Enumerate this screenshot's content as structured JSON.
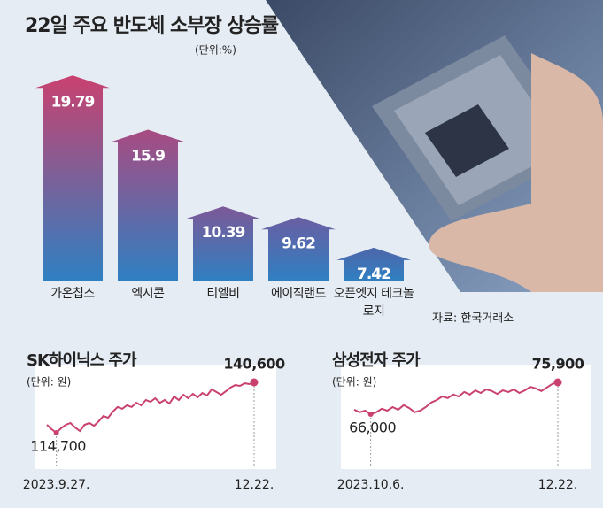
{
  "chart_data": [
    {
      "type": "bar",
      "title": "22일 주요 반도체 소부장 상승률",
      "unit": "(단위:%)",
      "categories": [
        "가온칩스",
        "엑시콘",
        "티엘비",
        "에이직랜드",
        "오픈엣지 테크놀로지"
      ],
      "values": [
        19.79,
        15.9,
        10.39,
        9.62,
        7.42
      ],
      "colors": [
        "#c9416f",
        "#a84b82",
        "#7d5897",
        "#6a5ea2",
        "#4f66aa"
      ],
      "base_color": "#2e80c2",
      "ylim": [
        5,
        20
      ],
      "source": "자료: 한국거래소"
    },
    {
      "type": "line",
      "title": "SK하이닉스 주가",
      "unit": "(단위: 원)",
      "color": "#c9416f",
      "categories": [
        null,
        null,
        "2023.9.27.",
        null,
        null,
        null,
        null,
        null,
        null,
        null,
        null,
        null,
        null,
        null,
        null,
        null,
        null,
        null,
        null,
        null,
        null,
        null,
        null,
        null,
        null,
        null,
        null,
        null,
        null,
        null,
        null,
        null,
        null,
        null,
        null,
        null,
        null,
        null,
        null,
        null,
        null,
        null,
        null,
        null,
        "12.22."
      ],
      "values": [
        118800,
        116500,
        114700,
        117000,
        118800,
        119700,
        117400,
        115600,
        118800,
        119700,
        118300,
        120600,
        123300,
        122400,
        125600,
        127900,
        127000,
        128800,
        127900,
        130100,
        128800,
        131500,
        130600,
        132400,
        130100,
        131500,
        129700,
        133300,
        131500,
        134200,
        132400,
        134700,
        132900,
        135100,
        133800,
        137000,
        135600,
        134200,
        136000,
        137900,
        139200,
        138800,
        140100,
        139700,
        140600
      ],
      "value_labels": [
        null,
        null,
        "114,700",
        null,
        null,
        null,
        null,
        null,
        null,
        null,
        null,
        null,
        null,
        null,
        null,
        null,
        null,
        null,
        null,
        null,
        null,
        null,
        null,
        null,
        null,
        null,
        null,
        null,
        null,
        null,
        null,
        null,
        null,
        null,
        null,
        null,
        null,
        null,
        null,
        null,
        null,
        null,
        null,
        null,
        "140,600"
      ]
    },
    {
      "type": "line",
      "title": "삼성전자 주가",
      "unit": "(단위: 원)",
      "color": "#c9416f",
      "categories": [
        null,
        null,
        null,
        "2023.10.6.",
        null,
        null,
        null,
        null,
        null,
        null,
        null,
        null,
        null,
        null,
        null,
        null,
        null,
        null,
        null,
        null,
        null,
        null,
        null,
        null,
        null,
        null,
        null,
        null,
        null,
        null,
        null,
        null,
        null,
        null,
        null,
        null,
        null,
        "12.22."
      ],
      "values": [
        67400,
        66600,
        67100,
        66000,
        66600,
        67700,
        67100,
        68200,
        67400,
        68800,
        67900,
        66600,
        67100,
        68200,
        69600,
        70400,
        71500,
        71000,
        72100,
        71500,
        72900,
        72100,
        73400,
        72600,
        73700,
        73200,
        72300,
        73400,
        72900,
        73700,
        72600,
        73400,
        74500,
        74000,
        73200,
        74300,
        75400,
        75900
      ],
      "value_labels": [
        null,
        null,
        null,
        "66,000",
        null,
        null,
        null,
        null,
        null,
        null,
        null,
        null,
        null,
        null,
        null,
        null,
        null,
        null,
        null,
        null,
        null,
        null,
        null,
        null,
        null,
        null,
        null,
        null,
        null,
        null,
        null,
        null,
        null,
        null,
        null,
        null,
        null,
        "75,900"
      ]
    }
  ]
}
